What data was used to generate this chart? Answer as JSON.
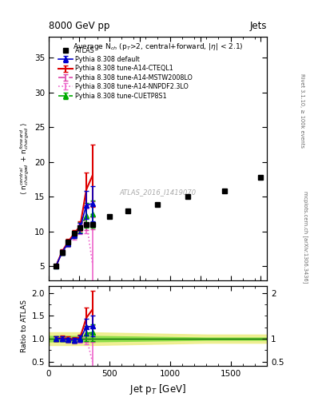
{
  "atlas_x": [
    60,
    110,
    160,
    210,
    260,
    310,
    360,
    500,
    650,
    900,
    1150,
    1450,
    1750
  ],
  "atlas_y": [
    5.0,
    7.0,
    8.5,
    9.8,
    10.5,
    11.0,
    11.0,
    12.2,
    13.0,
    13.9,
    15.0,
    15.8,
    17.8
  ],
  "mc_x": [
    60,
    110,
    160,
    210,
    260,
    310,
    360
  ],
  "default_y": [
    5.0,
    7.0,
    8.3,
    9.5,
    10.5,
    13.8,
    14.0
  ],
  "cteql1_y": [
    5.0,
    7.1,
    8.5,
    9.7,
    10.8,
    16.0,
    18.0
  ],
  "mstw_y": [
    5.0,
    7.0,
    8.3,
    9.5,
    10.5,
    12.0,
    12.3
  ],
  "nnpdf_y": [
    5.0,
    7.0,
    8.2,
    9.3,
    10.3,
    11.5,
    5.5
  ],
  "cuetp_y": [
    5.0,
    7.0,
    8.3,
    9.5,
    10.6,
    12.3,
    12.5
  ],
  "default_err": [
    0.25,
    0.35,
    0.4,
    0.5,
    0.7,
    2.0,
    2.5
  ],
  "cteql1_err": [
    0.25,
    0.35,
    0.4,
    0.5,
    0.7,
    2.5,
    4.5
  ],
  "mstw_err": [
    0.25,
    0.35,
    0.4,
    0.5,
    0.7,
    1.8,
    2.0
  ],
  "nnpdf_err": [
    0.25,
    0.35,
    0.4,
    0.5,
    0.7,
    1.8,
    6.5
  ],
  "cuetp_err": [
    0.25,
    0.35,
    0.4,
    0.5,
    0.7,
    1.8,
    2.0
  ],
  "xlim": [
    0,
    1800
  ],
  "ylim_main": [
    3,
    38
  ],
  "ylim_ratio": [
    0.4,
    2.15
  ],
  "yticks_main": [
    5,
    10,
    15,
    20,
    25,
    30,
    35
  ],
  "yticks_ratio": [
    0.5,
    1.0,
    1.5,
    2.0
  ],
  "xticks": [
    0,
    500,
    1000,
    1500
  ],
  "color_atlas": "#000000",
  "color_default": "#0000cc",
  "color_cteql1": "#dd0000",
  "color_mstw": "#dd44aa",
  "color_nnpdf": "#ee66cc",
  "color_cuetp": "#00aa00",
  "band_x": [
    0,
    60,
    350,
    1300,
    1800
  ],
  "band_green": [
    0.06,
    0.06,
    0.06,
    0.025,
    0.025
  ],
  "band_yellow": [
    0.14,
    0.14,
    0.14,
    0.09,
    0.09
  ],
  "title_left": "8000 GeV pp",
  "title_right": "Jets",
  "plot_title": "Average N$_{ch}$ (p$_{T}$>2, central+forward, |$\\eta$| < 2.1)",
  "ylabel_main": "$\\langle$ n$^{central}_{charged}$ + n$^{forward}_{charged}$ $\\rangle$",
  "ylabel_ratio": "Ratio to ATLAS",
  "xlabel": "Jet p$_{T}$ [GeV]",
  "watermark": "ATLAS_2016_I1419070",
  "label_atlas": "ATLAS",
  "label_default": "Pythia 8.308 default",
  "label_cteql1": "Pythia 8.308 tune-A14-CTEQL1",
  "label_mstw": "Pythia 8.308 tune-A14-MSTW2008LO",
  "label_nnpdf": "Pythia 8.308 tune-A14-NNPDF2.3LO",
  "label_cuetp": "Pythia 8.308 tune-CUETP8S1",
  "rivet_label": "Rivet 3.1.10, ≥ 100k events",
  "mcplots_label": "mcplots.cern.ch [arXiv:1306.3436]"
}
